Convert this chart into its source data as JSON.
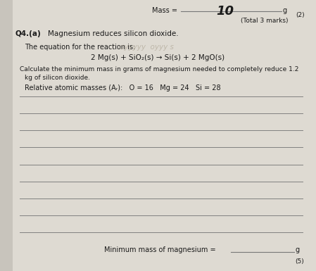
{
  "bg_color": "#c8c4bc",
  "page_color": "#dedad2",
  "top_label": "Mass = ",
  "top_value": "10",
  "top_unit": "g",
  "top_mark": "(2)",
  "top_total": "(Total 3 marks)",
  "question_label": "Q4.(a)",
  "question_title": "Magnesium reduces silicon dioxide.",
  "eq_intro": "The equation for the reaction is:",
  "equation": "2 Mg(s) + SiO₂(s) → Si(s) + 2 MgO(s)",
  "calc_text1": "Calculate the minimum mass in grams of magnesium needed to completely reduce 1.2",
  "calc_text2": "kg of silicon dioxide.",
  "atomic_masses": "Relative atomic masses (Aᵣ):   O = 16   Mg = 24   Si = 28",
  "num_lines": 9,
  "bottom_label": "Minimum mass of magnesium = ",
  "bottom_unit": "g",
  "bottom_mark": "(5)",
  "line_color": "#777777",
  "text_color": "#1a1a1a",
  "faint_color": "#b0a898",
  "faint_text": "oyyyyy  oyyy s"
}
